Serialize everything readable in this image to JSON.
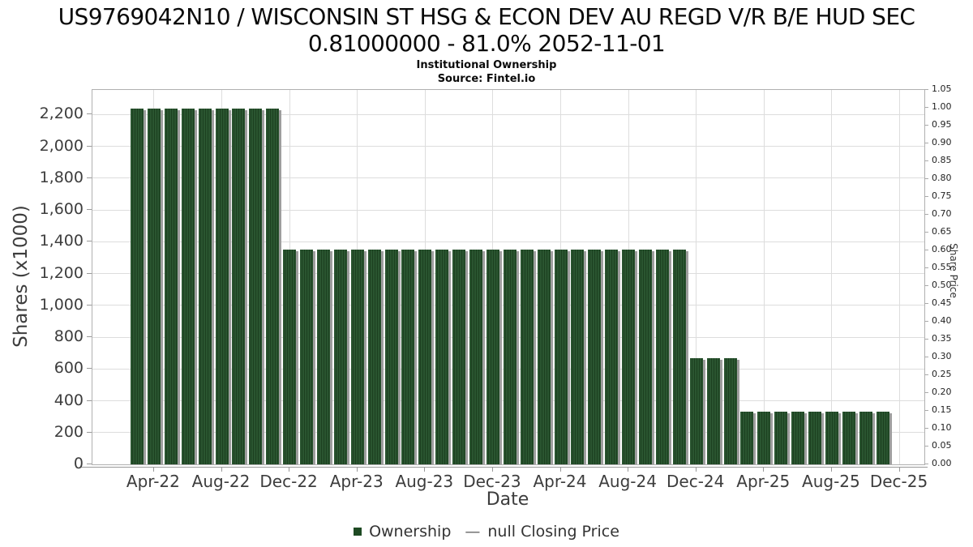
{
  "title": {
    "line1": "US9769042N10 / WISCONSIN ST HSG & ECON DEV AU REGD V/R B/E HUD SEC",
    "line2": "0.81000000 - 81.0% 2052-11-01",
    "subtitle": "Institutional Ownership",
    "source": "Source: Fintel.io"
  },
  "legend": {
    "items": [
      {
        "label": "Ownership",
        "swatch": "square",
        "color": "#1e4a23"
      },
      {
        "label": "null Closing Price",
        "swatch": "dash",
        "color": "#666666"
      }
    ]
  },
  "chart_data": {
    "type": "bar",
    "title": "US9769042N10 / WISCONSIN ST HSG & ECON DEV AU REGD V/R B/E HUD SEC 0.81000000 - 81.0% 2052-11-01",
    "subtitle": "Institutional Ownership",
    "source": "Source: Fintel.io",
    "xlabel": "Date",
    "ylabel_left": "Shares (x1000)",
    "ylabel_right": "Share Price",
    "ylim_left": [
      0,
      2355
    ],
    "ylim_right": [
      0,
      1.05
    ],
    "grid": true,
    "legend_position": "bottom",
    "series_name": "Ownership",
    "colors": {
      "bar": "#1e4a23",
      "bar_stripe_light": "#2a5530",
      "bar_stripe_dark": "#1c4020",
      "bar_shadow": "#9e9e9e",
      "grid": "#dddddd",
      "axis": "#999999",
      "text": "#3d3d3d"
    },
    "left_ticks": [
      {
        "label": "0",
        "value": 0
      },
      {
        "label": "200",
        "value": 200
      },
      {
        "label": "400",
        "value": 400
      },
      {
        "label": "600",
        "value": 600
      },
      {
        "label": "800",
        "value": 800
      },
      {
        "label": "1,000",
        "value": 1000
      },
      {
        "label": "1,200",
        "value": 1200
      },
      {
        "label": "1,400",
        "value": 1400
      },
      {
        "label": "1,600",
        "value": 1600
      },
      {
        "label": "1,800",
        "value": 1800
      },
      {
        "label": "2,000",
        "value": 2000
      },
      {
        "label": "2,200",
        "value": 2200
      }
    ],
    "right_ticks": [
      {
        "label": "0.00",
        "value": 0.0
      },
      {
        "label": "0.05",
        "value": 0.05
      },
      {
        "label": "0.10",
        "value": 0.1
      },
      {
        "label": "0.15",
        "value": 0.15
      },
      {
        "label": "0.20",
        "value": 0.2
      },
      {
        "label": "0.25",
        "value": 0.25
      },
      {
        "label": "0.30",
        "value": 0.3
      },
      {
        "label": "0.35",
        "value": 0.35
      },
      {
        "label": "0.40",
        "value": 0.4
      },
      {
        "label": "0.45",
        "value": 0.45
      },
      {
        "label": "0.50",
        "value": 0.5
      },
      {
        "label": "0.55",
        "value": 0.55
      },
      {
        "label": "0.60",
        "value": 0.6
      },
      {
        "label": "0.65",
        "value": 0.65
      },
      {
        "label": "0.70",
        "value": 0.7
      },
      {
        "label": "0.75",
        "value": 0.75
      },
      {
        "label": "0.80",
        "value": 0.8
      },
      {
        "label": "0.85",
        "value": 0.85
      },
      {
        "label": "0.90",
        "value": 0.9
      },
      {
        "label": "0.95",
        "value": 0.95
      },
      {
        "label": "1.00",
        "value": 1.0
      },
      {
        "label": "1.05",
        "value": 1.05
      }
    ],
    "x_ticks": [
      {
        "label": "Apr-22",
        "month": 1
      },
      {
        "label": "Aug-22",
        "month": 5
      },
      {
        "label": "Dec-22",
        "month": 9
      },
      {
        "label": "Apr-23",
        "month": 13
      },
      {
        "label": "Aug-23",
        "month": 17
      },
      {
        "label": "Dec-23",
        "month": 21
      },
      {
        "label": "Apr-24",
        "month": 25
      },
      {
        "label": "Aug-24",
        "month": 29
      },
      {
        "label": "Dec-24",
        "month": 33
      },
      {
        "label": "Apr-25",
        "month": 37
      },
      {
        "label": "Aug-25",
        "month": 41
      },
      {
        "label": "Dec-25",
        "month": 45
      }
    ],
    "bars": [
      {
        "month": "Mar-22",
        "value": 2240
      },
      {
        "month": "Apr-22",
        "value": 2240
      },
      {
        "month": "May-22",
        "value": 2240
      },
      {
        "month": "Jun-22",
        "value": 2240
      },
      {
        "month": "Jul-22",
        "value": 2240
      },
      {
        "month": "Aug-22",
        "value": 2240
      },
      {
        "month": "Sep-22",
        "value": 2240
      },
      {
        "month": "Oct-22",
        "value": 2240
      },
      {
        "month": "Nov-22",
        "value": 2240
      },
      {
        "month": "Dec-22",
        "value": 1350
      },
      {
        "month": "Jan-23",
        "value": 1350
      },
      {
        "month": "Feb-23",
        "value": 1350
      },
      {
        "month": "Mar-23",
        "value": 1350
      },
      {
        "month": "Apr-23",
        "value": 1350
      },
      {
        "month": "May-23",
        "value": 1350
      },
      {
        "month": "Jun-23",
        "value": 1350
      },
      {
        "month": "Jul-23",
        "value": 1350
      },
      {
        "month": "Aug-23",
        "value": 1350
      },
      {
        "month": "Sep-23",
        "value": 1350
      },
      {
        "month": "Oct-23",
        "value": 1350
      },
      {
        "month": "Nov-23",
        "value": 1350
      },
      {
        "month": "Dec-23",
        "value": 1350
      },
      {
        "month": "Jan-24",
        "value": 1350
      },
      {
        "month": "Feb-24",
        "value": 1350
      },
      {
        "month": "Mar-24",
        "value": 1350
      },
      {
        "month": "Apr-24",
        "value": 1350
      },
      {
        "month": "May-24",
        "value": 1350
      },
      {
        "month": "Jun-24",
        "value": 1350
      },
      {
        "month": "Jul-24",
        "value": 1350
      },
      {
        "month": "Aug-24",
        "value": 1350
      },
      {
        "month": "Sep-24",
        "value": 1350
      },
      {
        "month": "Oct-24",
        "value": 1350
      },
      {
        "month": "Nov-24",
        "value": 1350
      },
      {
        "month": "Dec-24",
        "value": 670
      },
      {
        "month": "Jan-25",
        "value": 670
      },
      {
        "month": "Feb-25",
        "value": 670
      },
      {
        "month": "Mar-25",
        "value": 330
      },
      {
        "month": "Apr-25",
        "value": 330
      },
      {
        "month": "May-25",
        "value": 330
      },
      {
        "month": "Jun-25",
        "value": 330
      },
      {
        "month": "Jul-25",
        "value": 330
      },
      {
        "month": "Aug-25",
        "value": 330
      },
      {
        "month": "Sep-25",
        "value": 330
      },
      {
        "month": "Oct-25",
        "value": 330
      },
      {
        "month": "Nov-25",
        "value": 330
      }
    ]
  }
}
